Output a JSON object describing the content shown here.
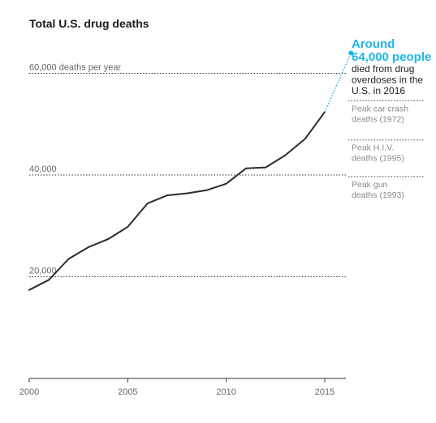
{
  "chart_data": {
    "type": "line",
    "title": "Total U.S. drug deaths",
    "xlabel": "",
    "ylabel": "",
    "xlim": [
      2000,
      2016
    ],
    "ylim": [
      0,
      65000
    ],
    "x_ticks": [
      "2000",
      "2005",
      "2010",
      "2015"
    ],
    "x_tick_values": [
      2000,
      2005,
      2010,
      2015
    ],
    "gridlines": [
      {
        "value": 20000,
        "label": "20,000"
      },
      {
        "value": 40000,
        "label": "40,000"
      },
      {
        "value": 60000,
        "label": "60,000 deaths per year"
      }
    ],
    "series": [
      {
        "x": [
          2000,
          2001,
          2002,
          2003,
          2004,
          2005,
          2006,
          2007,
          2008,
          2009,
          2010,
          2011,
          2012,
          2013,
          2014,
          2015
        ],
        "values": [
          17400,
          19400,
          23500,
          25800,
          27400,
          29800,
          34400,
          36000,
          36400,
          37000,
          38300,
          41300,
          41500,
          43900,
          47100,
          52400
        ]
      }
    ],
    "projection": {
      "from": {
        "x": 2015,
        "y": 52400
      },
      "to": {
        "x": 2016,
        "y": 64000
      }
    },
    "annotation": {
      "headline": [
        "Around",
        "64,000 people"
      ],
      "body": [
        "died from drug",
        "overdoses in the",
        "U.S. in 2016"
      ]
    },
    "reference_lines": [
      {
        "value": 54600,
        "label": [
          "Peak car crash",
          "deaths (1972)"
        ]
      },
      {
        "value": 46900,
        "label": [
          "Peak H.I.V.",
          "deaths (1995)"
        ]
      },
      {
        "value": 39700,
        "label": [
          "Peak gun",
          "deaths (1993)"
        ]
      }
    ],
    "colors": {
      "line": "#2b2b2b",
      "highlight": "#1fb6e6",
      "grid": "#333333",
      "reference": "#444444"
    }
  }
}
